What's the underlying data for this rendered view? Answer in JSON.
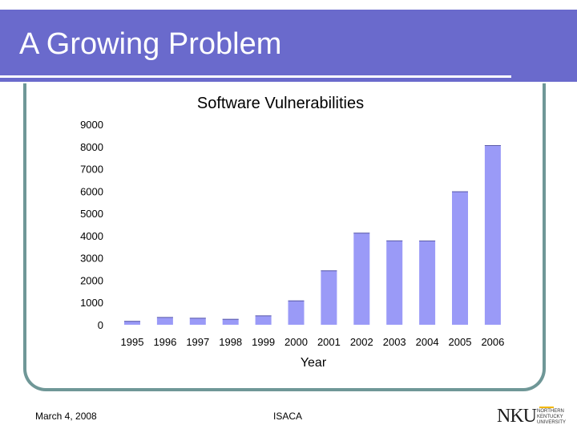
{
  "slide": {
    "title": "A Growing Problem",
    "footer_date": "March 4, 2008",
    "footer_center": "ISACA",
    "logo_mark": "NKU",
    "logo_text": "NORTHERN KENTUCKY UNIVERSITY"
  },
  "colors": {
    "title_bar": "#6a6acc",
    "bar": "#9a9af7",
    "bar_edge": "#5c5ca8",
    "frame": "#6f9797"
  },
  "chart_data": {
    "type": "bar",
    "title": "Software Vulnerabilities",
    "xlabel": "Year",
    "ylabel": "",
    "ylim": [
      0,
      9000
    ],
    "yticks": [
      0,
      1000,
      2000,
      3000,
      4000,
      5000,
      6000,
      7000,
      8000,
      9000
    ],
    "categories": [
      "1995",
      "1996",
      "1997",
      "1998",
      "1999",
      "2000",
      "2001",
      "2002",
      "2003",
      "2004",
      "2005",
      "2006"
    ],
    "values": [
      171,
      345,
      311,
      262,
      417,
      1090,
      2437,
      4129,
      3784,
      3780,
      5990,
      8064
    ],
    "grid": false,
    "legend": "none"
  }
}
